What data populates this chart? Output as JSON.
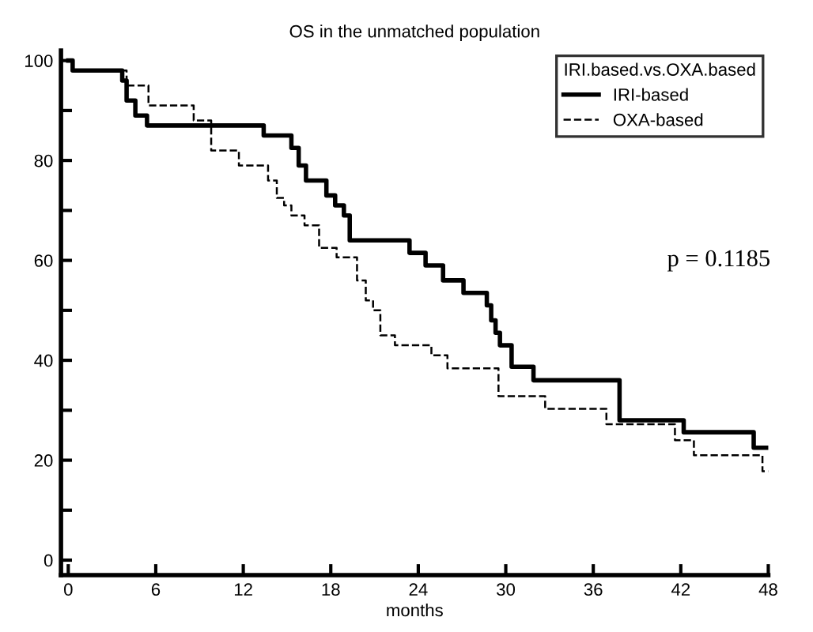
{
  "chart_data": {
    "type": "step",
    "title": "OS in the unmatched population",
    "xlabel": "months",
    "legend_title": "IRI.based.vs.OXA.based",
    "legend": "top right",
    "grid": false,
    "marker": "none",
    "xlim": [
      -0.5,
      48
    ],
    "xticks": [
      0,
      6,
      12,
      18,
      24,
      30,
      36,
      42,
      48
    ],
    "ylim": [
      -3,
      102
    ],
    "yticks": [
      0,
      {
        "value": 10,
        "label": null
      },
      20,
      {
        "value": 30,
        "label": null
      },
      40,
      {
        "value": 50,
        "label": null
      },
      60,
      {
        "value": 70,
        "label": null
      },
      80,
      {
        "value": 90,
        "label": null
      },
      100
    ],
    "annotations": [
      "p = 0.1185"
    ],
    "series": [
      {
        "name": "IRI-based",
        "color": "#000000",
        "line_style": "solid",
        "x": [
          0,
          0.3,
          3.7,
          4.0,
          4.6,
          5.4,
          13.4,
          15.3,
          15.8,
          16.3,
          17.7,
          18.3,
          18.9,
          19.3,
          23.4,
          24.5,
          25.7,
          27.1,
          28.7,
          29.0,
          29.3,
          29.6,
          30.4,
          31.9,
          37.8,
          42.2,
          47.0,
          48
        ],
        "values": [
          100,
          98,
          96,
          92,
          89,
          87,
          85,
          82.5,
          79,
          76,
          73,
          71,
          69,
          64,
          61.5,
          59,
          56,
          53.5,
          51,
          48,
          45.5,
          43,
          38.7,
          36,
          28,
          25.6,
          22.5,
          22.5
        ]
      },
      {
        "name": "OXA-based",
        "color": "#000000",
        "line_style": "dashed",
        "x": [
          0,
          0.3,
          4.0,
          5.5,
          8.6,
          9.8,
          11.7,
          13.7,
          14.3,
          14.8,
          15.3,
          16.2,
          17.2,
          18.4,
          19.8,
          20.4,
          20.9,
          21.4,
          22.4,
          24.9,
          26.0,
          29.5,
          32.7,
          36.9,
          41.6,
          42.9,
          47.6,
          48
        ],
        "values": [
          100,
          98,
          95,
          91,
          88,
          82,
          79,
          76,
          72.5,
          71,
          69,
          67,
          62.5,
          60.6,
          56,
          52,
          50,
          45,
          43,
          41,
          38.4,
          32.8,
          30.3,
          27.2,
          24,
          21,
          17.8,
          17.8
        ]
      }
    ]
  }
}
